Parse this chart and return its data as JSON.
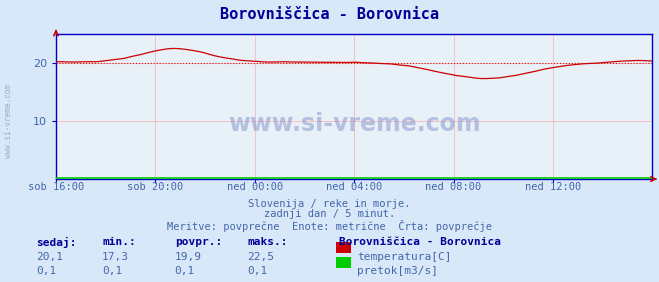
{
  "title": "Borovniščica - Borovnica",
  "title_color": "#000099",
  "bg_color": "#d8e8f8",
  "plot_bg_color": "#e8f0f8",
  "grid_color": "#ffaaaa",
  "text_color": "#4466aa",
  "watermark": "www.si-vreme.com",
  "xlabels": [
    "sob 16:00",
    "sob 20:00",
    "ned 00:00",
    "ned 04:00",
    "ned 08:00",
    "ned 12:00"
  ],
  "xtick_positions": [
    0,
    48,
    96,
    144,
    192,
    240
  ],
  "ylim": [
    0,
    25
  ],
  "yticks": [
    10,
    20
  ],
  "n_points": 289,
  "temp_avg": 19.9,
  "temp_color": "#cc0000",
  "flow_color": "#00cc00",
  "avg_line_color": "#cc0000",
  "subtitle1": "Slovenija / reke in morje.",
  "subtitle2": "zadnji dan / 5 minut.",
  "subtitle3": "Meritve: povprečne  Enote: metrične  Črta: povprečje",
  "legend_title": "Borovniščica - Borovnica",
  "legend_items": [
    "temperatura[C]",
    "pretok[m3/s]"
  ],
  "legend_colors": [
    "#cc0000",
    "#00cc00"
  ],
  "table_headers": [
    "sedaj:",
    "min.:",
    "povpr.:",
    "maks.:"
  ],
  "table_row1": [
    "20,1",
    "17,3",
    "19,9",
    "22,5"
  ],
  "table_row2": [
    "0,1",
    "0,1",
    "0,1",
    "0,1"
  ],
  "spine_color": "#0000cc",
  "arrow_color": "#cc0000",
  "left_text_color": "#7799bb"
}
